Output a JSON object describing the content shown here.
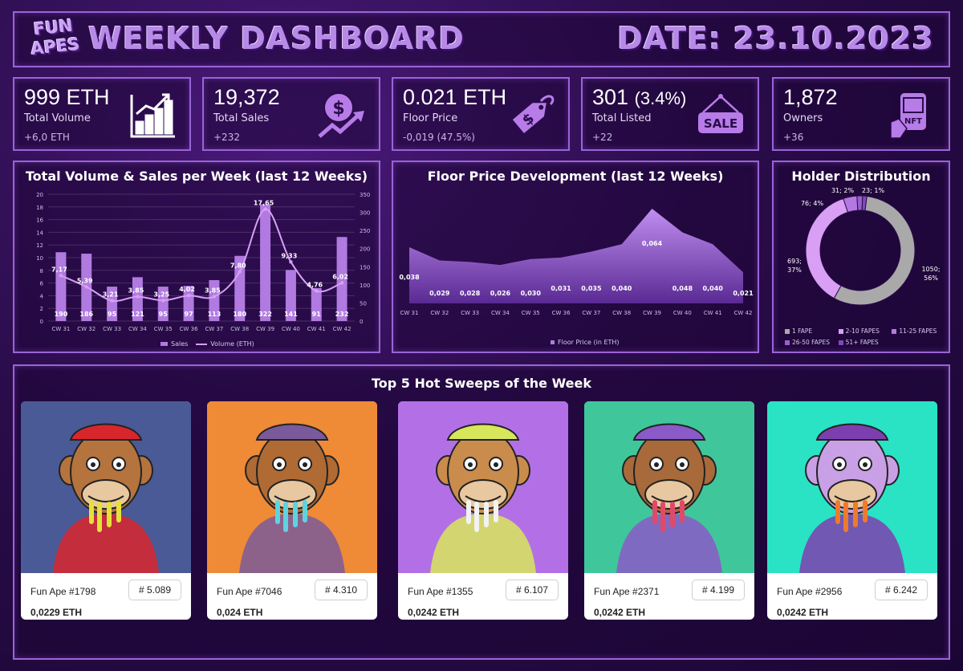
{
  "header": {
    "logo_top": "FUN",
    "logo_bottom": "APES",
    "title": "WEEKLY DASHBOARD",
    "date": "DATE: 23.10.2023"
  },
  "kpis": [
    {
      "value": "999 ETH",
      "value_extra": "",
      "label": "Total Volume",
      "change": "+6,0 ETH",
      "icon": "bar-chart-growth-icon"
    },
    {
      "value": "19,372",
      "value_extra": "",
      "label": "Total Sales",
      "change": "+232",
      "icon": "dollar-growth-icon"
    },
    {
      "value": "0.021 ETH",
      "value_extra": "",
      "label": "Floor Price",
      "change": "-0,019 (47.5%)",
      "icon": "price-tag-icon"
    },
    {
      "value": "301",
      "value_extra": "(3.4%)",
      "label": "Total Listed",
      "change": "+22",
      "icon": "sale-sign-icon"
    },
    {
      "value": "1,872",
      "value_extra": "",
      "label": "Owners",
      "change": "+36",
      "icon": "nft-hand-icon"
    }
  ],
  "volume_panel": {
    "title": "Total Volume & Sales per Week (last 12 Weeks)",
    "legend_sales": "Sales",
    "legend_volume": "Volume (ETH)"
  },
  "floor_panel": {
    "title": "Floor Price Development (last 12 Weeks)",
    "legend": "Floor Price (in ETH)"
  },
  "holder_panel": {
    "title": "Holder Distribution"
  },
  "sweeps": {
    "title": "Top 5 Hot Sweeps of the Week",
    "cards": [
      {
        "name": "Fun Ape #1798",
        "rank": "# 5.089",
        "price": "0,0229 ETH",
        "bg": "#4a5a96",
        "skin": "#b5733e",
        "hat": "#d8262d",
        "drip": "#e5e13a"
      },
      {
        "name": "Fun Ape #7046",
        "rank": "# 4.310",
        "price": "0,024 ETH",
        "bg": "#ef8a36",
        "skin": "#b06a34",
        "hat": "#7a5a9a",
        "drip": "#5ed3e0"
      },
      {
        "name": "Fun Ape #1355",
        "rank": "# 6.107",
        "price": "0,0242 ETH",
        "bg": "#b370e6",
        "skin": "#c98c4c",
        "hat": "#d7e65a",
        "drip": "#f2f2f2"
      },
      {
        "name": "Fun Ape #2371",
        "rank": "# 4.199",
        "price": "0,0242 ETH",
        "bg": "#3fc79b",
        "skin": "#a86a3a",
        "hat": "#8a5ac8",
        "drip": "#e04a6a"
      },
      {
        "name": "Fun Ape #2956",
        "rank": "# 6.242",
        "price": "0,0242 ETH",
        "bg": "#29e3c4",
        "skin": "#c9a0e6",
        "hat": "#7d3fb0",
        "drip": "#ef7a2a"
      }
    ]
  },
  "chart_data": [
    {
      "type": "bar",
      "title": "Total Volume & Sales per Week (last 12 Weeks)",
      "categories": [
        "CW 31",
        "CW 32",
        "CW 33",
        "CW 34",
        "CW 35",
        "CW 36",
        "CW 37",
        "CW 38",
        "CW 39",
        "CW 40",
        "CW 41",
        "CW 42"
      ],
      "series": [
        {
          "name": "Sales",
          "type": "bar",
          "axis": "right",
          "values": [
            190,
            186,
            95,
            121,
            95,
            97,
            113,
            180,
            322,
            141,
            91,
            232
          ]
        },
        {
          "name": "Volume (ETH)",
          "type": "line",
          "axis": "left",
          "values": [
            7.17,
            5.39,
            3.21,
            3.85,
            3.25,
            4.02,
            3.85,
            7.8,
            17.65,
            9.33,
            4.76,
            6.02
          ]
        }
      ],
      "value_labels_sales": [
        "190",
        "186",
        "95",
        "121",
        "95",
        "97",
        "113",
        "180",
        "322",
        "141",
        "91",
        "232"
      ],
      "value_labels_volume": [
        "7,17",
        "5,39",
        "3,21",
        "3,85",
        "3,25",
        "4,02",
        "3,85",
        "7,80",
        "17,65",
        "9,33",
        "4,76",
        "6,02"
      ],
      "ylim_left": [
        0,
        20
      ],
      "yticks_left": [
        "0",
        "2",
        "4",
        "6",
        "8",
        "10",
        "12",
        "14",
        "16",
        "18",
        "20"
      ],
      "ylim_right": [
        0,
        350
      ],
      "yticks_right": [
        "0",
        "50",
        "100",
        "150",
        "200",
        "250",
        "300",
        "350"
      ],
      "grid": true,
      "legend": "bottom"
    },
    {
      "type": "area",
      "title": "Floor Price Development (last 12 Weeks)",
      "categories": [
        "CW 31",
        "CW 32",
        "CW 33",
        "CW 34",
        "CW 35",
        "CW 36",
        "CW 37",
        "CW 38",
        "CW 39",
        "CW 40",
        "CW 41",
        "CW 42"
      ],
      "series": [
        {
          "name": "Floor Price (in ETH)",
          "values": [
            0.038,
            0.029,
            0.028,
            0.026,
            0.03,
            0.031,
            0.035,
            0.04,
            0.064,
            0.048,
            0.04,
            0.021
          ]
        }
      ],
      "value_labels": [
        "0,038",
        "0,029",
        "0,028",
        "0,026",
        "0,030",
        "0,031",
        "0,035",
        "0,040",
        "0,064",
        "0,048",
        "0,040",
        "0,021"
      ],
      "grid": false,
      "legend": "bottom"
    },
    {
      "type": "pie",
      "title": "Holder Distribution",
      "labels": [
        "1 FAPE",
        "2-10 FAPES",
        "11-25 FAPES",
        "26-50 FAPES",
        "51+ FAPES"
      ],
      "values": [
        1050,
        693,
        76,
        31,
        23
      ],
      "value_labels": [
        "1050; 56%",
        "693; 37%",
        "76; 4%",
        "31; 2%",
        "23; 1%"
      ],
      "colors": [
        "#a9a9a9",
        "#d89ff5",
        "#b27ae0",
        "#9a5ed0",
        "#7e4ab8"
      ],
      "legend": "bottom"
    }
  ]
}
